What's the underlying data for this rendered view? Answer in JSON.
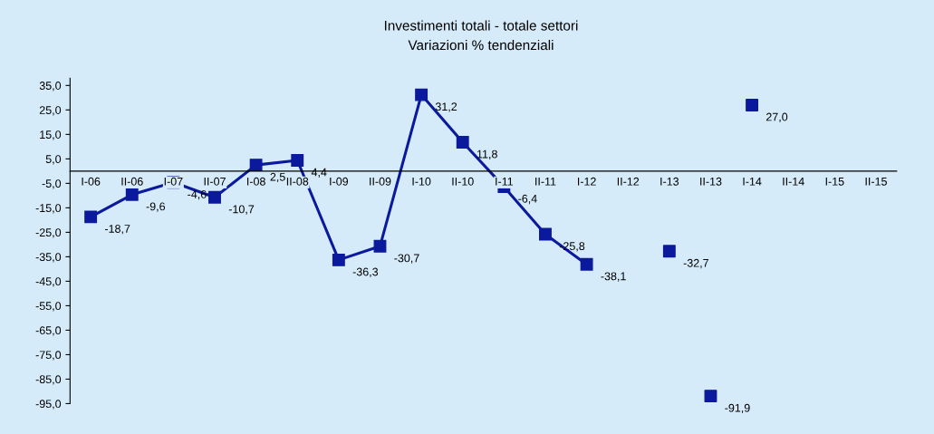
{
  "chart_data": {
    "type": "line",
    "title": "Investimenti totali - totale settori",
    "subtitle": "Variazioni % tendenziali",
    "categories": [
      "I-06",
      "II-06",
      "I-07",
      "II-07",
      "I-08",
      "II-08",
      "I-09",
      "II-09",
      "I-10",
      "II-10",
      "I-11",
      "II-11",
      "I-12",
      "II-12",
      "I-13",
      "II-13",
      "I-14",
      "II-14",
      "I-15",
      "II-15"
    ],
    "series": [
      {
        "color": "#0b1a9c",
        "values": [
          -18.7,
          -9.6,
          -4.6,
          -10.7,
          2.5,
          4.4,
          -36.3,
          -30.7,
          31.2,
          11.8,
          -6.4,
          -25.8,
          -38.1,
          null,
          null,
          null,
          null,
          null,
          null,
          null
        ],
        "value_labels": [
          "-18,7",
          "-9,6",
          "-4,6",
          "-10,7",
          "2,5",
          "4,4",
          "-36,3",
          "-30,7",
          "31,2",
          "11,8",
          "-6,4",
          "-25,8",
          "-38,1",
          null,
          null,
          null,
          null,
          null,
          null,
          null
        ]
      },
      {
        "type": "scatter",
        "color": "#0b1a9c",
        "values": [
          null,
          null,
          null,
          null,
          null,
          null,
          null,
          null,
          null,
          null,
          null,
          null,
          null,
          null,
          -32.7,
          -91.9,
          27.0,
          null,
          null,
          null
        ],
        "value_labels": [
          null,
          null,
          null,
          null,
          null,
          null,
          null,
          null,
          null,
          null,
          null,
          null,
          null,
          null,
          "-32,7",
          "-91,9",
          "27,0",
          null,
          null,
          null
        ]
      }
    ],
    "ylim": [
      -95,
      38
    ],
    "yticks": [
      {
        "value": 35,
        "label": "35,0"
      },
      {
        "value": 25,
        "label": "25,0"
      },
      {
        "value": 15,
        "label": "15,0"
      },
      {
        "value": 5,
        "label": "5,0"
      },
      {
        "value": -5,
        "label": "-5,0"
      },
      {
        "value": -15,
        "label": "-15,0"
      },
      {
        "value": -25,
        "label": "-25,0"
      },
      {
        "value": -35,
        "label": "-35,0"
      },
      {
        "value": -45,
        "label": "-45,0"
      },
      {
        "value": -55,
        "label": "-55,0"
      },
      {
        "value": -65,
        "label": "-65,0"
      },
      {
        "value": -75,
        "label": "-75,0"
      },
      {
        "value": -85,
        "label": "-85,0"
      },
      {
        "value": -95,
        "label": "-95,0"
      }
    ],
    "marker": "square",
    "line_style": "solid",
    "grid": false,
    "legend": false
  }
}
